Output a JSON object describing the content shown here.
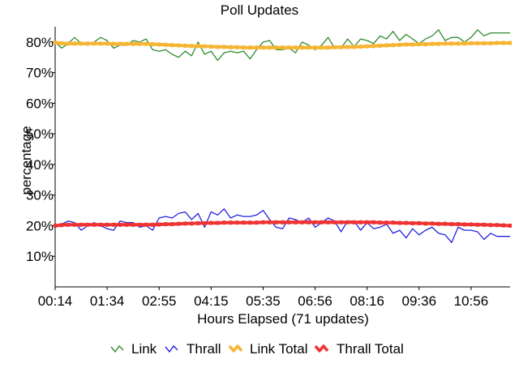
{
  "chart_data": {
    "type": "line",
    "title": "Poll Updates",
    "xlabel": "Hours Elapsed (71 updates)",
    "ylabel": "percentage",
    "x_ticks": [
      "00:14",
      "01:34",
      "02:55",
      "04:15",
      "05:35",
      "06:56",
      "08:16",
      "09:36",
      "10:56"
    ],
    "y_ticks": [
      "10%",
      "20%",
      "30%",
      "40%",
      "50%",
      "60%",
      "70%",
      "80%"
    ],
    "ylim": [
      0,
      85
    ],
    "grid": false,
    "legend_position": "bottom",
    "series": [
      {
        "name": "Link",
        "color": "#2e8b2e",
        "marker": "check",
        "values": [
          80,
          78,
          79.5,
          81.5,
          79.5,
          79,
          80,
          81.5,
          80.5,
          78,
          79,
          79,
          80.5,
          80,
          81,
          77.5,
          77,
          77.5,
          76,
          75,
          77,
          75.5,
          80,
          76,
          77,
          74,
          76.5,
          77,
          76.5,
          77,
          74.5,
          77.5,
          80,
          80.5,
          77.5,
          77.5,
          78,
          76.5,
          80,
          79,
          77.5,
          79,
          81.5,
          78,
          78,
          81,
          78.5,
          81,
          80.5,
          79.5,
          82,
          81,
          83.5,
          80.5,
          82.5,
          81,
          79.5,
          81,
          82,
          84,
          80.5,
          81.5,
          81.5,
          80,
          81.5,
          84,
          82,
          83,
          83,
          83,
          83
        ]
      },
      {
        "name": "Thrall",
        "color": "#2222dd",
        "marker": "check",
        "values": [
          20,
          20.5,
          21.5,
          21,
          18.5,
          20,
          21,
          20,
          19,
          18.5,
          21.5,
          21,
          21,
          19.5,
          20,
          18.5,
          22.5,
          23,
          22.5,
          24,
          24.5,
          22,
          24,
          19.5,
          24.5,
          23.5,
          25.5,
          22.5,
          23.5,
          23,
          23,
          23.5,
          25,
          22,
          19.5,
          19,
          22.5,
          22,
          21,
          22.5,
          19.5,
          21,
          22.5,
          21.5,
          18,
          21.5,
          21.5,
          18.5,
          21,
          19,
          19.5,
          20.5,
          17.5,
          18.5,
          16,
          19,
          17,
          18.5,
          19.5,
          17.5,
          17,
          14.5,
          19.5,
          18.5,
          18.5,
          18,
          15.5,
          17.5,
          16.5,
          16.5,
          16.5
        ]
      },
      {
        "name": "Link Total",
        "color": "#f5b533",
        "marker": "dot",
        "values": [
          79.8,
          79.6,
          79.5,
          79.5,
          79.5,
          79.5,
          79.5,
          79.5,
          79.5,
          79.4,
          79.4,
          79.4,
          79.4,
          79.4,
          79.4,
          79.3,
          79.2,
          79.1,
          79,
          78.9,
          78.8,
          78.7,
          78.7,
          78.6,
          78.5,
          78.4,
          78.4,
          78.3,
          78.3,
          78.2,
          78.2,
          78.2,
          78.2,
          78.2,
          78.2,
          78.2,
          78.2,
          78.2,
          78.2,
          78.2,
          78.2,
          78.2,
          78.2,
          78.3,
          78.3,
          78.4,
          78.4,
          78.5,
          78.6,
          78.7,
          78.8,
          78.9,
          79,
          79.1,
          79.2,
          79.2,
          79.3,
          79.3,
          79.4,
          79.4,
          79.5,
          79.5,
          79.5,
          79.5,
          79.6,
          79.6,
          79.6,
          79.6,
          79.7,
          79.7,
          79.7
        ]
      },
      {
        "name": "Thrall Total",
        "color": "#ee3333",
        "marker": "dot",
        "values": [
          20,
          20.2,
          20.3,
          20.3,
          20.3,
          20.3,
          20.3,
          20.3,
          20.3,
          20.3,
          20.3,
          20.3,
          20.3,
          20.3,
          20.3,
          20.3,
          20.4,
          20.5,
          20.5,
          20.6,
          20.7,
          20.7,
          20.8,
          20.8,
          20.9,
          20.9,
          21,
          21,
          21,
          21,
          21,
          21,
          21.1,
          21.1,
          21.1,
          21.1,
          21.1,
          21.1,
          21.1,
          21.1,
          21.1,
          21.1,
          21.1,
          21.1,
          21.1,
          21.1,
          21.1,
          21.1,
          21.1,
          21.1,
          21,
          21,
          21,
          20.9,
          20.9,
          20.8,
          20.8,
          20.7,
          20.7,
          20.6,
          20.6,
          20.5,
          20.5,
          20.4,
          20.4,
          20.3,
          20.3,
          20.2,
          20.2,
          20.1,
          20
        ]
      }
    ]
  }
}
